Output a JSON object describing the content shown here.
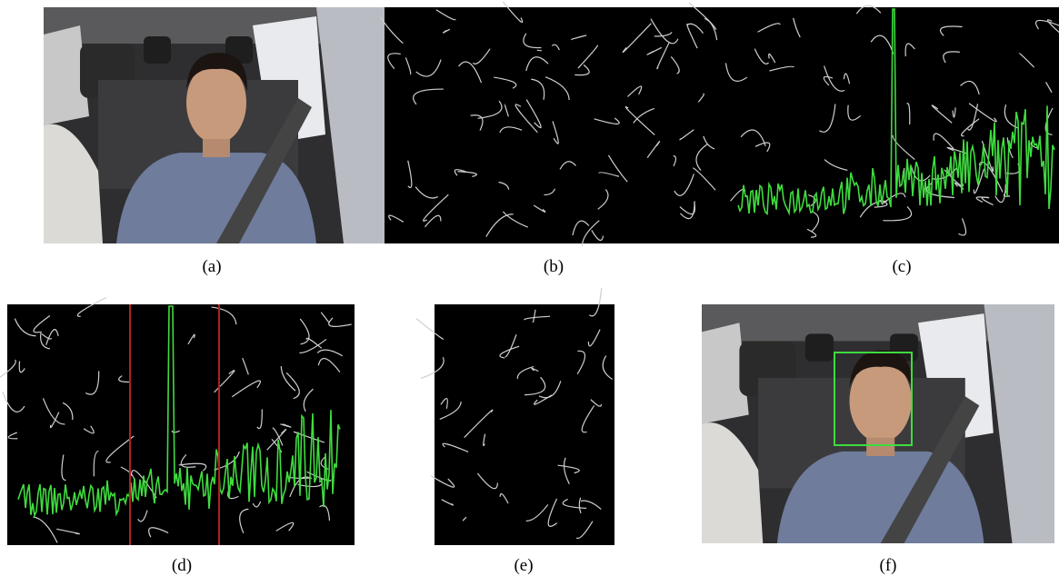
{
  "panels": [
    {
      "caption": "(a)"
    },
    {
      "caption": "(b)"
    },
    {
      "caption": "(c)"
    },
    {
      "caption": "(d)"
    },
    {
      "caption": "(e)"
    },
    {
      "caption": "(f)"
    }
  ]
}
